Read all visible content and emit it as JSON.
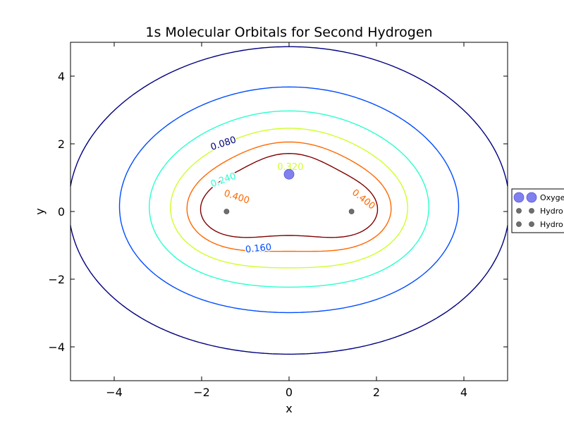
{
  "chart_data": {
    "type": "contour",
    "title": "1s Molecular Orbitals for Second Hydrogen",
    "xlabel": "x",
    "ylabel": "y",
    "xlim": [
      -5,
      5
    ],
    "ylim": [
      -5,
      5
    ],
    "xticks": [
      -4,
      -2,
      0,
      2,
      4
    ],
    "yticks": [
      -4,
      -2,
      0,
      2,
      4
    ],
    "xtick_labels": [
      "−4",
      "−2",
      "0",
      "2",
      "4"
    ],
    "ytick_labels": [
      "−4",
      "−2",
      "0",
      "2",
      "4"
    ],
    "grid": false,
    "legend_position": "right, partially outside plot (cropped)",
    "contour_levels": [
      {
        "level": 0.08,
        "label": "0.080",
        "color": "#00007f"
      },
      {
        "level": 0.16,
        "label": "0.160",
        "color": "#004cff"
      },
      {
        "level": 0.24,
        "label": "0.240",
        "color": "#29ffce"
      },
      {
        "level": 0.32,
        "label": "0.320",
        "color": "#ceff29"
      },
      {
        "level": 0.4,
        "label": "0.400",
        "color": "#ff6800"
      },
      {
        "level": 0.48,
        "label": "",
        "color": "#7f0000"
      }
    ],
    "contour_label_positions": [
      {
        "text": "0.080",
        "x": -1.5,
        "y": 2.0,
        "rotation": -18,
        "color": "#00007f"
      },
      {
        "text": "0.160",
        "x": -0.7,
        "y": -1.1,
        "rotation": -6,
        "color": "#004cff"
      },
      {
        "text": "0.240",
        "x": -1.5,
        "y": 0.92,
        "rotation": -20,
        "color": "#29ffce"
      },
      {
        "text": "0.320",
        "x": 0.03,
        "y": 1.3,
        "rotation": 0,
        "color": "#ceff29"
      },
      {
        "text": "0.400",
        "x": -1.2,
        "y": 0.42,
        "rotation": 18,
        "color": "#ff6800"
      },
      {
        "text": "0.400",
        "x": 1.7,
        "y": 0.35,
        "rotation": 38,
        "color": "#ff6800"
      }
    ],
    "atoms": [
      {
        "name": "Oxygen",
        "x": 0.0,
        "y": 1.1,
        "color": "#8080ee",
        "marker_size": "large"
      },
      {
        "name": "Hydrogen",
        "x": -1.43,
        "y": 0.0,
        "color": "#6e6e6e",
        "marker_size": "small"
      },
      {
        "name": "Hydrogen",
        "x": 1.43,
        "y": 0.0,
        "color": "#6e6e6e",
        "marker_size": "small"
      }
    ],
    "legend_entries": [
      {
        "label": "Oxyge",
        "marker_color": "#8080ee",
        "marker_size": "large"
      },
      {
        "label": "Hydro",
        "marker_color": "#6e6e6e",
        "marker_size": "small"
      },
      {
        "label": "Hydro",
        "marker_color": "#6e6e6e",
        "marker_size": "small"
      }
    ]
  }
}
